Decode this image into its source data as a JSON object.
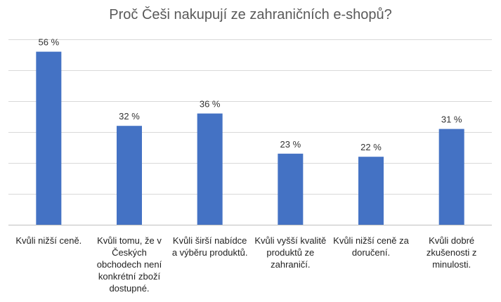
{
  "chart_data": {
    "type": "bar",
    "title": "Proč Češi nakupují ze zahraničních e-shopů?",
    "categories": [
      "Kvůli nižší ceně.",
      "Kvůli tomu, že v Českých obchodech není konkrétní zboží dostupné.",
      "Kvůli širší nabídce a výběru produktů.",
      "Kvůli vyšší kvalitě produktů ze zahraničí.",
      "Kvůli nižší ceně za doručení.",
      "Kvůli dobré zkušenosti z minulosti."
    ],
    "values": [
      56,
      32,
      36,
      23,
      22,
      31
    ],
    "data_labels": [
      "56 %",
      "32 %",
      "36 %",
      "23 %",
      "22 %",
      "31 %"
    ],
    "ylim": [
      0,
      60
    ],
    "grid": true,
    "bar_color": "#4472C4",
    "grid_color": "#d9d9d9"
  }
}
